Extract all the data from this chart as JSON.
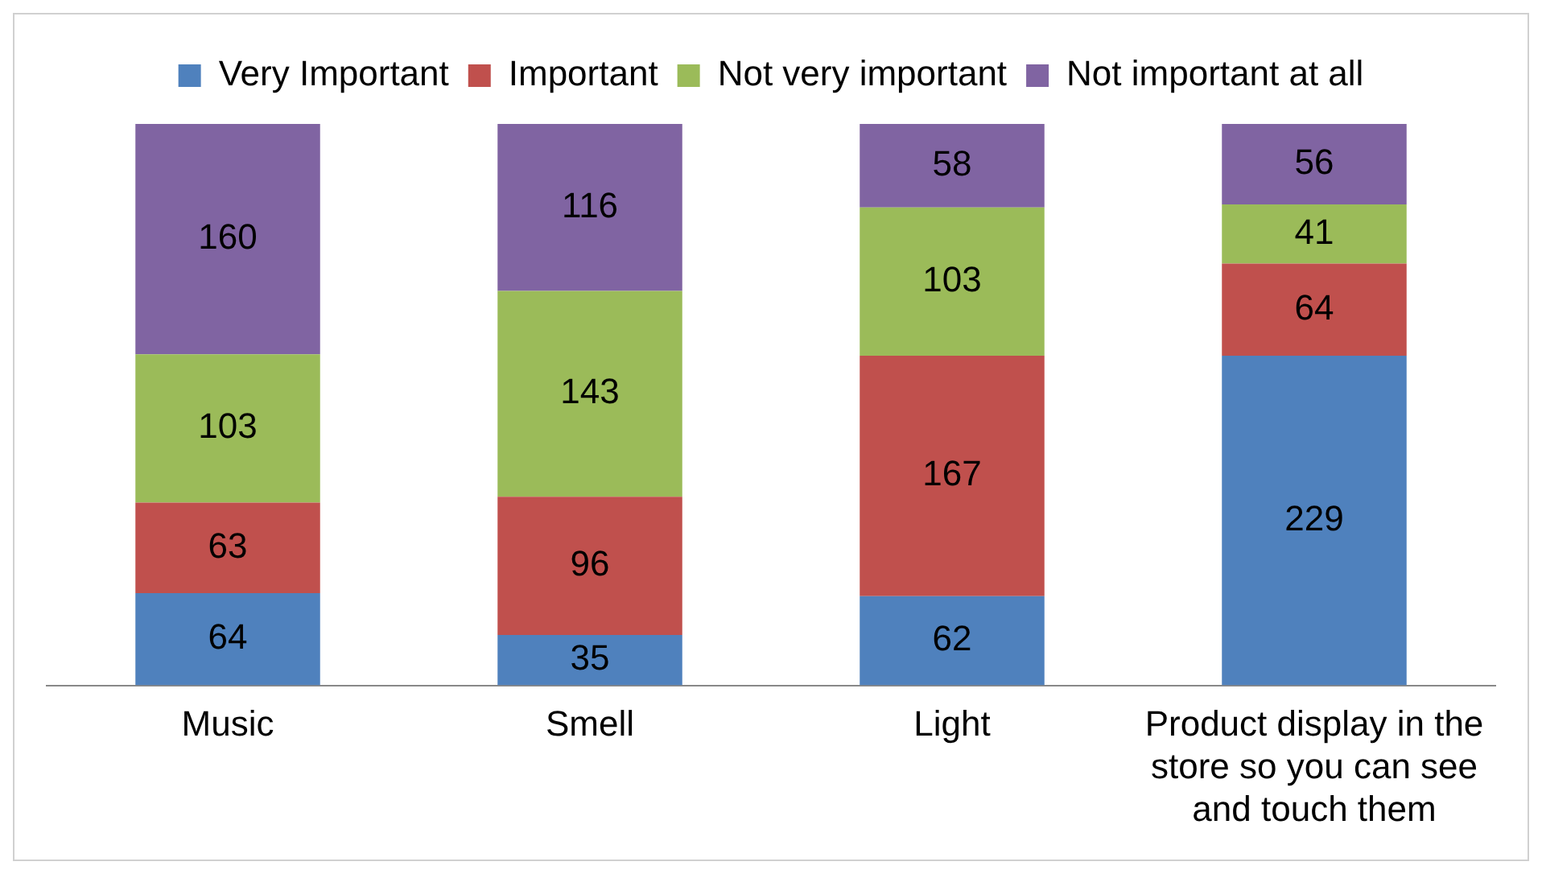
{
  "chart_data": {
    "type": "bar",
    "stacked": true,
    "data_labels": true,
    "legend": "top",
    "grid": false,
    "categories": [
      "Music",
      "Smell",
      "Light",
      "Product display in the store so you can see and touch them"
    ],
    "series": [
      {
        "name": "Very Important",
        "color": "#4f81bd",
        "values": [
          64,
          35,
          62,
          229
        ]
      },
      {
        "name": "Important",
        "color": "#c0504d",
        "values": [
          63,
          96,
          167,
          64
        ]
      },
      {
        "name": "Not very important",
        "color": "#9bbb59",
        "values": [
          103,
          143,
          103,
          41
        ]
      },
      {
        "name": "Not important at all",
        "color": "#8064a2",
        "values": [
          160,
          116,
          58,
          56
        ]
      }
    ]
  }
}
